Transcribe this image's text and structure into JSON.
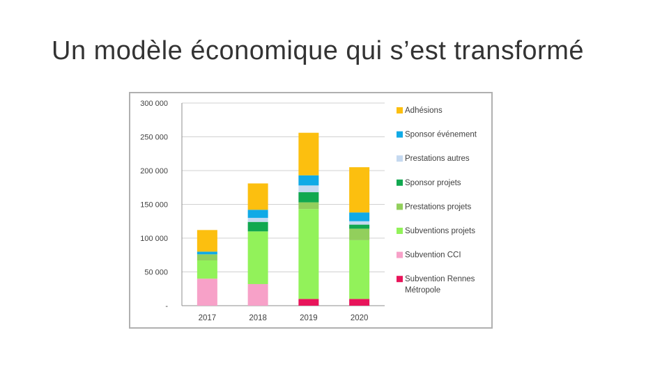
{
  "slide": {
    "title": "Un modèle économique qui s’est transformé"
  },
  "chart_data": {
    "type": "bar",
    "stacked": true,
    "title": "",
    "xlabel": "",
    "ylabel": "",
    "categories": [
      "2017",
      "2018",
      "2019",
      "2020"
    ],
    "ylim": [
      0,
      300000
    ],
    "yticks": [
      0,
      50000,
      100000,
      150000,
      200000,
      250000,
      300000
    ],
    "ytick_labels": [
      "-",
      "50 000",
      "100 000",
      "150 000",
      "200 000",
      "250 000",
      "300 000"
    ],
    "grid": true,
    "legend_position": "right",
    "series": [
      {
        "name": "Subvention Rennes Métropole",
        "color": "#e8145a",
        "values": [
          0,
          0,
          10000,
          10000
        ]
      },
      {
        "name": "Subvention CCI",
        "color": "#f7a1c8",
        "values": [
          40000,
          32000,
          0,
          0
        ]
      },
      {
        "name": "Subventions projets",
        "color": "#92f25a",
        "values": [
          27000,
          78000,
          133000,
          87000
        ]
      },
      {
        "name": "Prestations projets",
        "color": "#92cf5c",
        "values": [
          9000,
          0,
          10000,
          17000
        ]
      },
      {
        "name": "Sponsor projets",
        "color": "#11a850",
        "values": [
          0,
          14000,
          15000,
          6000
        ]
      },
      {
        "name": "Prestations autres",
        "color": "#c5d9f0",
        "values": [
          0,
          6000,
          10000,
          5000
        ]
      },
      {
        "name": "Sponsor événement",
        "color": "#10aae6",
        "values": [
          4000,
          12000,
          15000,
          13000
        ]
      },
      {
        "name": "Adhésions",
        "color": "#fcbf0f",
        "values": [
          32000,
          39000,
          63000,
          67000
        ]
      }
    ]
  }
}
